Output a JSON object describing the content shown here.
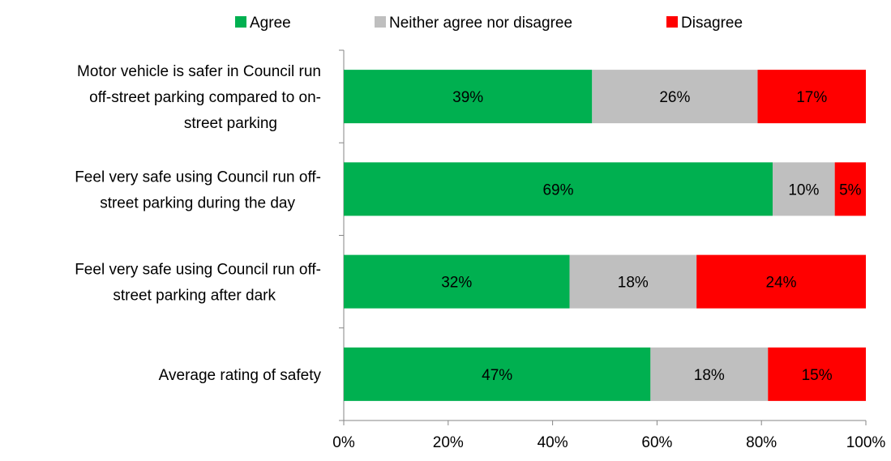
{
  "chart_data": {
    "type": "bar",
    "orientation": "horizontal",
    "stacked": true,
    "normalized": true,
    "categories": [
      [
        "Motor vehicle is safer in Council run",
        "off-street parking compared to on-",
        "street parking"
      ],
      [
        "Feel very safe using Council run off-",
        "street parking during the day"
      ],
      [
        "Feel very safe using Council run off-",
        "street parking after dark"
      ],
      [
        "Average rating of safety"
      ]
    ],
    "series": [
      {
        "name": "Agree",
        "color": "#00b050",
        "values": [
          39,
          69,
          32,
          47
        ]
      },
      {
        "name": "Neither agree nor disagree",
        "color": "#bfbfbf",
        "values": [
          26,
          10,
          18,
          18
        ]
      },
      {
        "name": "Disagree",
        "color": "#ff0000",
        "values": [
          17,
          5,
          24,
          15
        ]
      }
    ],
    "data_label_suffix": "%",
    "x_ticks": [
      "0%",
      "20%",
      "40%",
      "60%",
      "80%",
      "100%"
    ],
    "xlim": [
      0,
      100
    ],
    "legend_position": "top",
    "grid": false
  }
}
